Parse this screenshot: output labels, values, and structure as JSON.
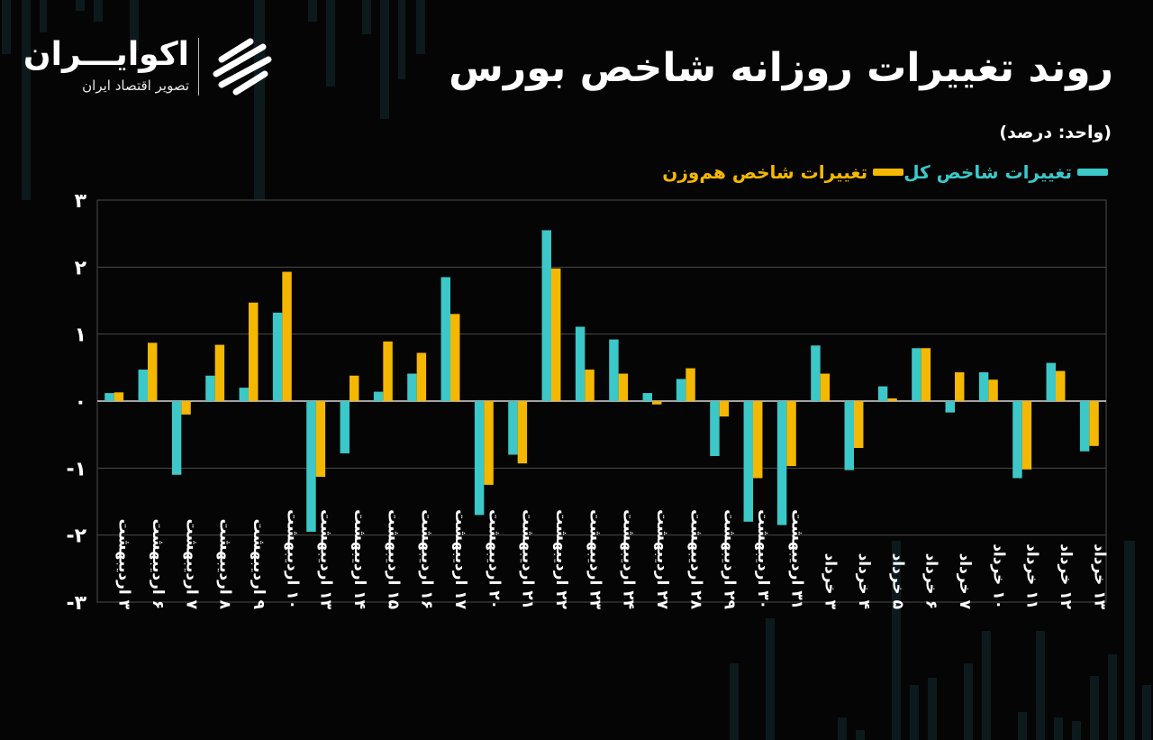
{
  "header": {
    "title": "روند تغییرات روزانه شاخص بورس",
    "unit": "(واحد: درصد)"
  },
  "brand": {
    "name": "اکوایـــران",
    "subtitle": "تصویر اقتصاد ایران",
    "logo_icon": "ekoiran-logo-icon"
  },
  "colors": {
    "background": "#050505",
    "total_index": "#3cc8c8",
    "equal_weight_index": "#f5b800",
    "grid": "#4a4a4a",
    "axis": "#d9d9d9"
  },
  "legend": [
    {
      "label": "تغییرات شاخص کل",
      "color": "#3cc8c8"
    },
    {
      "label": "تغییرات شاخص هم‌وزن",
      "color": "#f5b800"
    }
  ],
  "chart_data": {
    "type": "bar",
    "title": "روند تغییرات روزانه شاخص بورس",
    "ylabel": "",
    "xlabel": "",
    "ylim": [
      -3,
      3
    ],
    "yticks": [
      3,
      2,
      1,
      0,
      -1,
      -2,
      -3
    ],
    "ytick_labels": [
      "۳",
      "۲",
      "۱",
      "۰",
      "-۱",
      "-۲",
      "-۳"
    ],
    "grid": true,
    "legend_position": "top-right",
    "categories": [
      "۳ اردیبهشت",
      "۶ اردیبهشت",
      "۷ اردیبهشت",
      "۸ اردیبهشت",
      "۹ اردیبهشت",
      "۱۰ اردیبهشت",
      "۱۳ اردیبهشت",
      "۱۴ اردیبهشت",
      "۱۵ اردیبهشت",
      "۱۶ اردیبهشت",
      "۱۷ اردیبهشت",
      "۲۰ اردیبهشت",
      "۲۱ اردیبهشت",
      "۲۲ اردیبهشت",
      "۲۳ اردیبهشت",
      "۲۴ اردیبهشت",
      "۲۷ اردیبهشت",
      "۲۸ اردیبهشت",
      "۲۹ اردیبهشت",
      "۳۰ اردیبهشت",
      "۳۱ اردیبهشت",
      "۳ خرداد",
      "۴ خرداد",
      "۵ خرداد",
      "۶ خرداد",
      "۷ خرداد",
      "۱۰ خرداد",
      "۱۱ خرداد",
      "۱۲ خرداد",
      "۱۳ خرداد"
    ],
    "series": [
      {
        "name": "تغییرات شاخص کل",
        "values": [
          0.12,
          0.47,
          -1.1,
          0.38,
          0.2,
          1.32,
          -1.95,
          -0.78,
          0.14,
          0.41,
          1.85,
          -1.7,
          -0.8,
          2.55,
          1.11,
          0.92,
          0.12,
          0.33,
          -0.82,
          -1.8,
          -1.85,
          0.83,
          -1.03,
          0.22,
          0.79,
          -0.17,
          0.43,
          -1.15,
          0.57,
          -0.75
        ]
      },
      {
        "name": "تغییرات شاخص هم‌وزن",
        "values": [
          0.13,
          0.87,
          -0.2,
          0.84,
          1.47,
          1.93,
          -1.13,
          0.38,
          0.89,
          0.72,
          1.3,
          -1.25,
          -0.93,
          1.98,
          0.47,
          0.41,
          -0.05,
          0.49,
          -0.23,
          -1.15,
          -0.97,
          0.41,
          -0.7,
          0.04,
          0.79,
          0.43,
          0.32,
          -1.02,
          0.45,
          -0.67
        ]
      }
    ]
  }
}
